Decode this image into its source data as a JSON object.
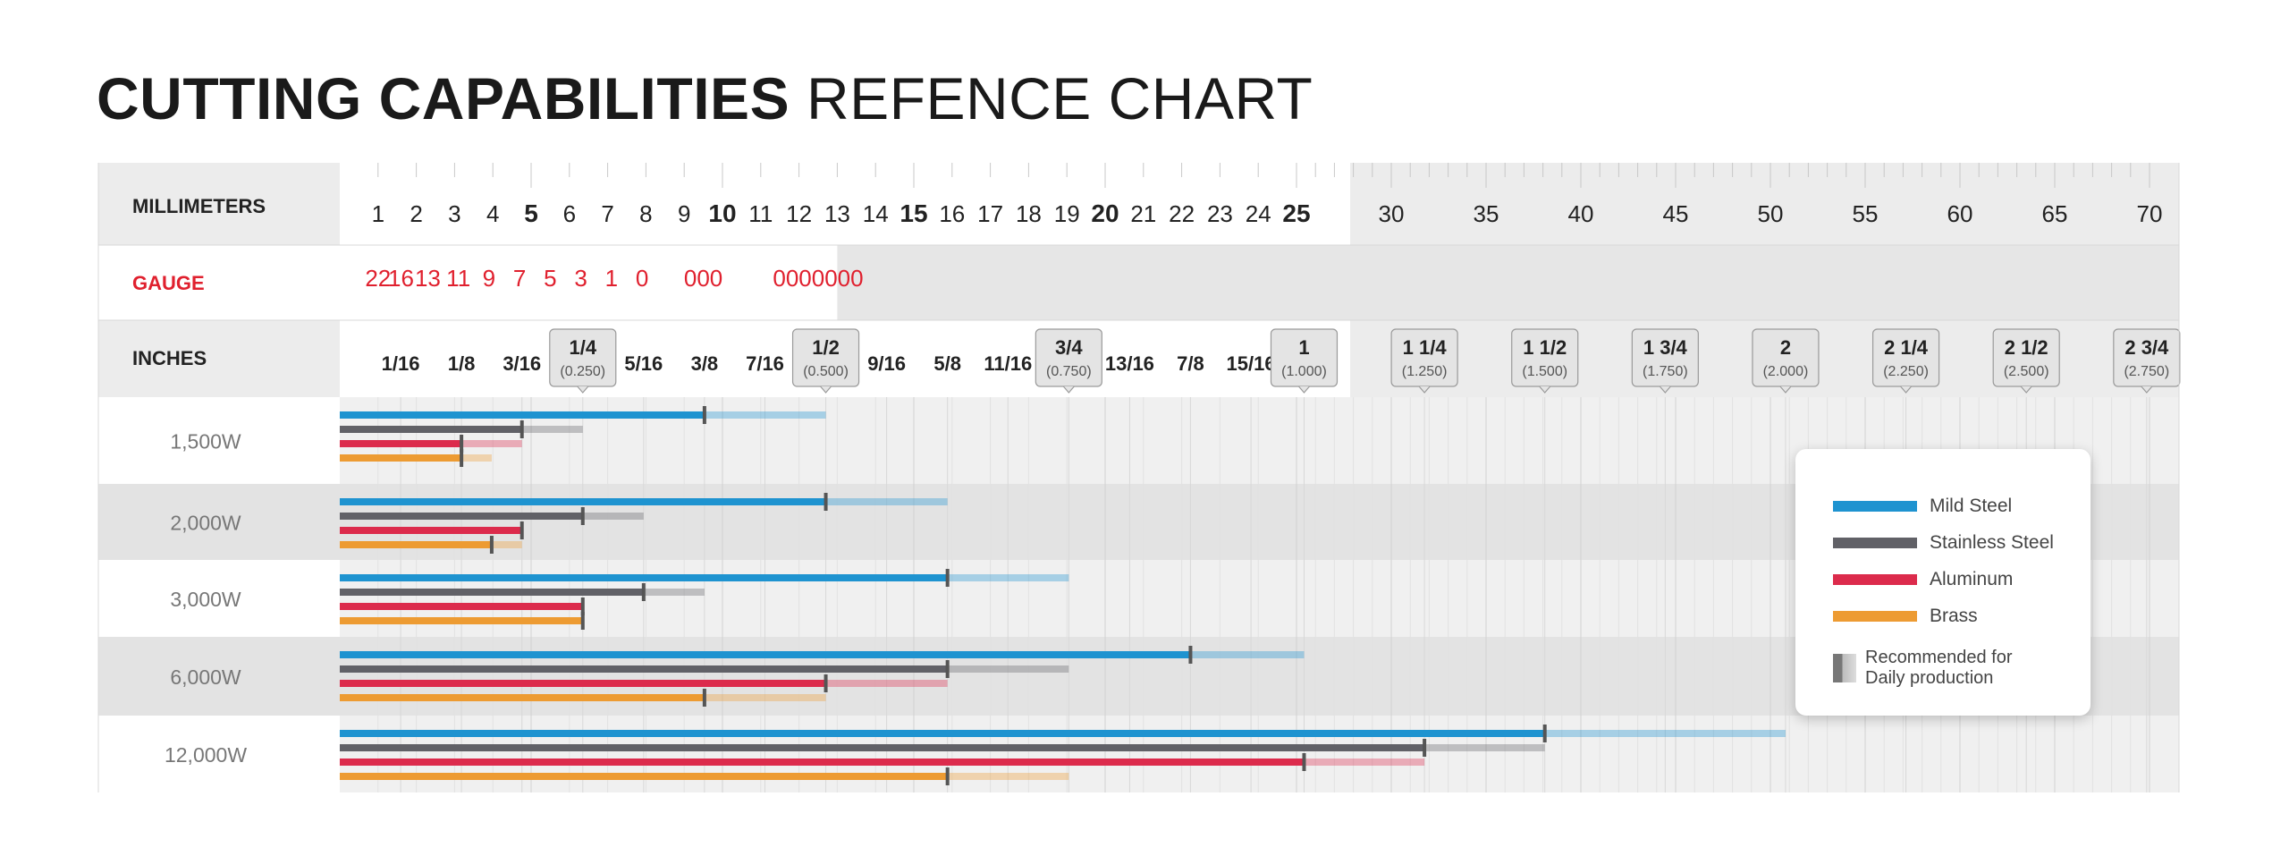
{
  "title": {
    "bold": "CUTTING CAPABILITIES",
    "light": "REFENCE CHART"
  },
  "chart_data": {
    "type": "bar",
    "title": "CUTTING CAPABILITIES REFENCE CHART",
    "row_labels": {
      "millimeters": "MILLIMETERS",
      "gauge": "GAUGE",
      "inches": "INCHES"
    },
    "mm_ticks": [
      "1",
      "2",
      "3",
      "4",
      "5",
      "6",
      "7",
      "8",
      "9",
      "10",
      "11",
      "12",
      "13",
      "14",
      "15",
      "16",
      "17",
      "18",
      "19",
      "20",
      "21",
      "22",
      "23",
      "24",
      "25",
      "30",
      "35",
      "40",
      "45",
      "50",
      "55",
      "60",
      "65",
      "70"
    ],
    "mm_major": [
      "5",
      "10",
      "15",
      "20",
      "25"
    ],
    "gauge_ticks": [
      {
        "label": "22",
        "mm": 1.0
      },
      {
        "label": "16",
        "mm": 1.6
      },
      {
        "label": "13",
        "mm": 2.3
      },
      {
        "label": "11",
        "mm": 3.1
      },
      {
        "label": "9",
        "mm": 3.9
      },
      {
        "label": "7",
        "mm": 4.7
      },
      {
        "label": "5",
        "mm": 5.5
      },
      {
        "label": "3",
        "mm": 6.3
      },
      {
        "label": "1",
        "mm": 7.1
      },
      {
        "label": "0",
        "mm": 7.9
      },
      {
        "label": "000",
        "mm": 9.5
      },
      {
        "label": "0000000",
        "mm": 12.5
      }
    ],
    "inch_ticks": [
      {
        "label": "1/16",
        "mm": 1.59
      },
      {
        "label": "1/8",
        "mm": 3.18
      },
      {
        "label": "3/16",
        "mm": 4.76
      },
      {
        "label": "1/4",
        "sub": "(0.250)",
        "mm": 6.35,
        "boxed": true
      },
      {
        "label": "5/16",
        "mm": 7.94
      },
      {
        "label": "3/8",
        "mm": 9.53
      },
      {
        "label": "7/16",
        "mm": 11.11
      },
      {
        "label": "1/2",
        "sub": "(0.500)",
        "mm": 12.7,
        "boxed": true
      },
      {
        "label": "9/16",
        "mm": 14.29
      },
      {
        "label": "5/8",
        "mm": 15.88
      },
      {
        "label": "11/16",
        "mm": 17.46
      },
      {
        "label": "3/4",
        "sub": "(0.750)",
        "mm": 19.05,
        "boxed": true
      },
      {
        "label": "13/16",
        "mm": 20.64
      },
      {
        "label": "7/8",
        "mm": 22.23
      },
      {
        "label": "15/16",
        "mm": 23.81
      },
      {
        "label": "1",
        "sub": "(1.000)",
        "mm": 25.4,
        "boxed": true
      },
      {
        "label": "1 1/4",
        "sub": "(1.250)",
        "mm": 31.75,
        "boxed": true
      },
      {
        "label": "1 1/2",
        "sub": "(1.500)",
        "mm": 38.1,
        "boxed": true
      },
      {
        "label": "1 3/4",
        "sub": "(1.750)",
        "mm": 44.45,
        "boxed": true
      },
      {
        "label": "2",
        "sub": "(2.000)",
        "mm": 50.8,
        "boxed": true
      },
      {
        "label": "2 1/4",
        "sub": "(2.250)",
        "mm": 57.15,
        "boxed": true
      },
      {
        "label": "2 1/2",
        "sub": "(2.500)",
        "mm": 63.5,
        "boxed": true
      },
      {
        "label": "2 3/4",
        "sub": "(2.750)",
        "mm": 69.85,
        "boxed": true
      }
    ],
    "series_names": [
      "Mild Steel",
      "Stainless Steel",
      "Aluminum",
      "Brass"
    ],
    "series_colors": [
      "#1e93d0",
      "#616167",
      "#dc2b4c",
      "#ed9b32"
    ],
    "rows": [
      {
        "label": "1,500W",
        "max": [
          12.7,
          6.35,
          4.76,
          3.97
        ],
        "recommended": [
          9.53,
          4.76,
          3.18,
          3.18
        ]
      },
      {
        "label": "2,000W",
        "max": [
          15.88,
          7.94,
          4.76,
          4.76
        ],
        "recommended": [
          12.7,
          6.35,
          4.76,
          3.97
        ]
      },
      {
        "label": "3,000W",
        "max": [
          19.05,
          9.53,
          6.35,
          6.35
        ],
        "recommended": [
          15.88,
          7.94,
          6.35,
          6.35
        ]
      },
      {
        "label": "6,000W",
        "max": [
          25.4,
          19.05,
          15.88,
          12.7
        ],
        "recommended": [
          22.23,
          15.88,
          12.7,
          9.53
        ]
      },
      {
        "label": "12,000W",
        "max": [
          50.8,
          38.1,
          31.75,
          19.05
        ],
        "recommended": [
          38.1,
          31.75,
          25.4,
          15.88
        ]
      }
    ],
    "xlabel": "",
    "ylabel": "",
    "xlim_mm": [
      0,
      70
    ]
  },
  "legend": {
    "items": [
      {
        "label": "Mild Steel",
        "color": "#1e93d0"
      },
      {
        "label": "Stainless Steel",
        "color": "#616167"
      },
      {
        "label": "Aluminum",
        "color": "#dc2b4c"
      },
      {
        "label": "Brass",
        "color": "#ed9b32"
      }
    ],
    "recommended_label": "Recommended for Daily production"
  }
}
